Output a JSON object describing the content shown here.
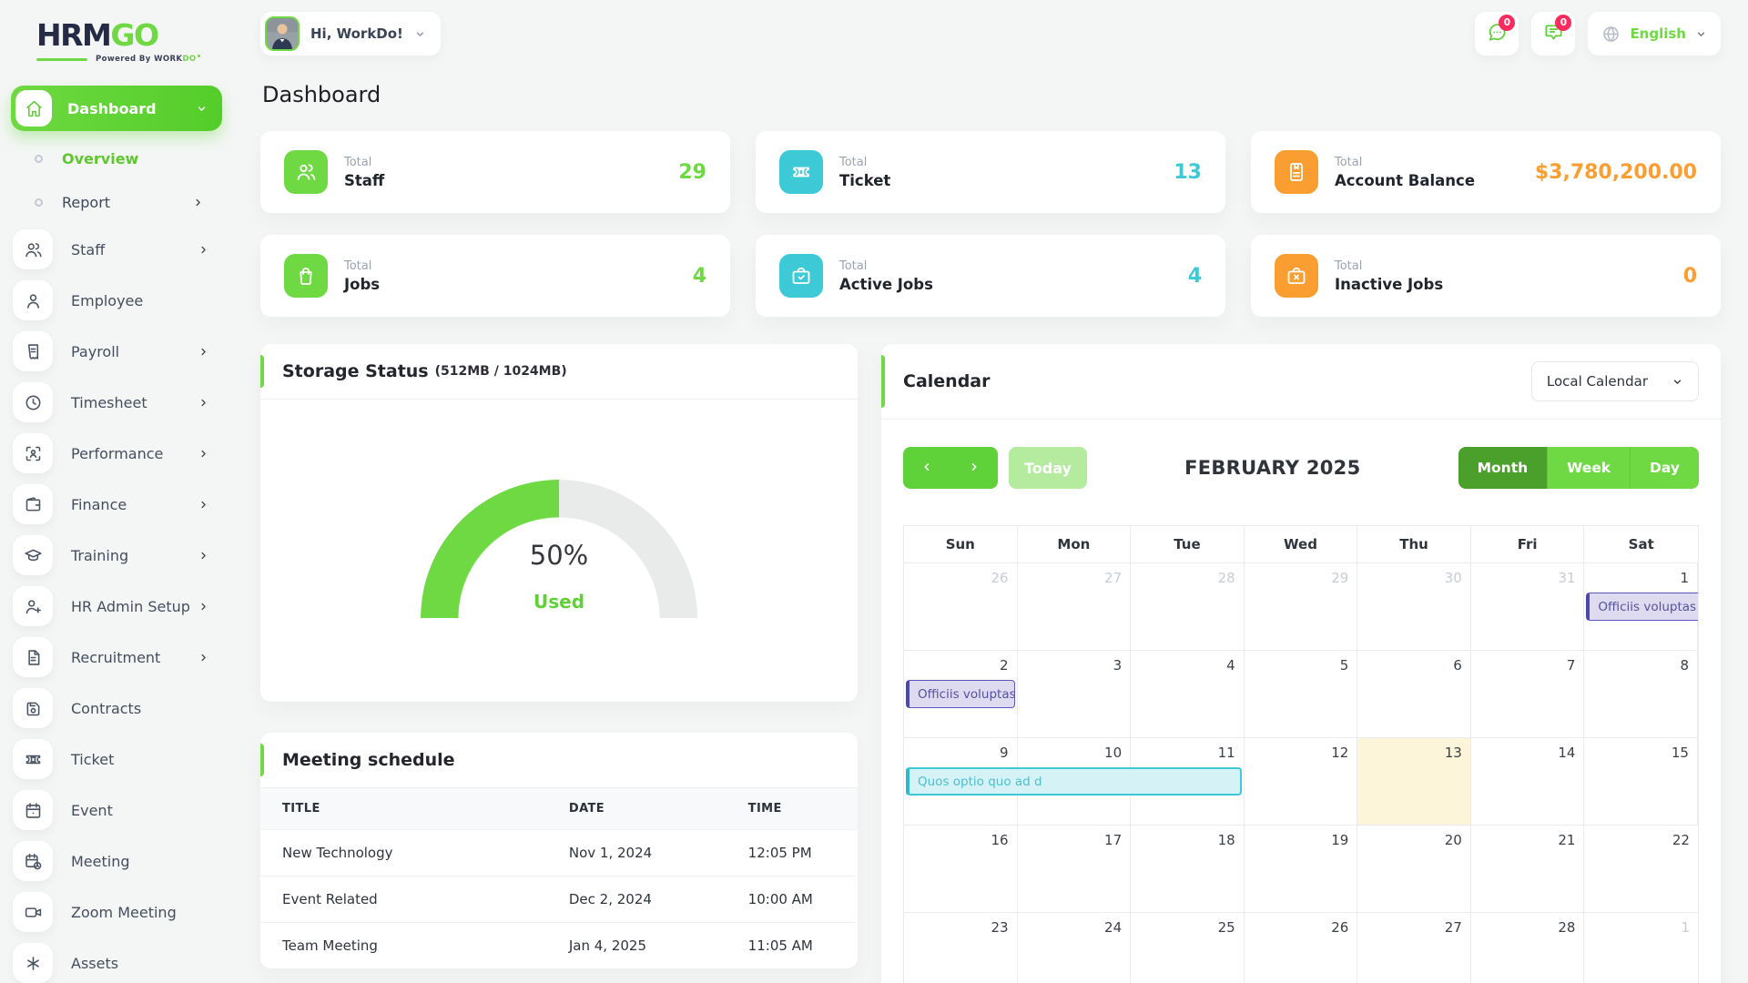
{
  "brand": {
    "name_primary": "HRM",
    "name_secondary": "GO",
    "powered_prefix": "Powered By",
    "powered_work": "WORK",
    "powered_do": "DO"
  },
  "header": {
    "greeting": "Hi, WorkDo!",
    "language": "English",
    "messages_badge": "0",
    "notifications_badge": "0"
  },
  "page": {
    "title": "Dashboard"
  },
  "sidebar": {
    "items": [
      {
        "label": "Dashboard",
        "icon": "home",
        "type": "active"
      },
      {
        "label": "Overview",
        "type": "sub",
        "active": true
      },
      {
        "label": "Report",
        "type": "sub",
        "chevron": true
      },
      {
        "label": "Staff",
        "icon": "users",
        "chevron": true
      },
      {
        "label": "Employee",
        "icon": "user"
      },
      {
        "label": "Payroll",
        "icon": "receipt",
        "chevron": true
      },
      {
        "label": "Timesheet",
        "icon": "clock",
        "chevron": true
      },
      {
        "label": "Performance",
        "icon": "scan-person",
        "chevron": true
      },
      {
        "label": "Finance",
        "icon": "wallet",
        "chevron": true
      },
      {
        "label": "Training",
        "icon": "graduation-cap",
        "chevron": true
      },
      {
        "label": "HR Admin Setup",
        "icon": "user-plus",
        "chevron": true
      },
      {
        "label": "Recruitment",
        "icon": "document",
        "chevron": true
      },
      {
        "label": "Contracts",
        "icon": "save"
      },
      {
        "label": "Ticket",
        "icon": "ticket"
      },
      {
        "label": "Event",
        "icon": "calendar"
      },
      {
        "label": "Meeting",
        "icon": "calendar-clock"
      },
      {
        "label": "Zoom Meeting",
        "icon": "video"
      },
      {
        "label": "Assets",
        "icon": "asterisk"
      }
    ]
  },
  "stat_cards": [
    {
      "prefix": "Total",
      "label": "Staff",
      "value": "29",
      "color": "#6fd943",
      "icon": "users"
    },
    {
      "prefix": "Total",
      "label": "Ticket",
      "value": "13",
      "color": "#3ec9d6",
      "icon": "ticket"
    },
    {
      "prefix": "Total",
      "label": "Account Balance",
      "value": "$3,780,200.00",
      "color": "#fb9e32",
      "icon": "invoice"
    },
    {
      "prefix": "Total",
      "label": "Jobs",
      "value": "4",
      "color": "#6fd943",
      "icon": "bag"
    },
    {
      "prefix": "Total",
      "label": "Active Jobs",
      "value": "4",
      "color": "#3ec9d6",
      "icon": "briefcase-check"
    },
    {
      "prefix": "Total",
      "label": "Inactive Jobs",
      "value": "0",
      "color": "#fb9e32",
      "icon": "briefcase-x"
    }
  ],
  "storage": {
    "title": "Storage Status",
    "subtitle": "(512MB / 1024MB)",
    "percent_text": "50%",
    "used_label": "Used",
    "percent_value": 50,
    "used_mb": 512,
    "total_mb": 1024,
    "fill_color": "#6fd943",
    "track_color": "#e9eaea"
  },
  "meetings": {
    "title": "Meeting schedule",
    "columns": [
      "TITLE",
      "DATE",
      "TIME"
    ],
    "rows": [
      [
        "New Technology",
        "Nov 1, 2024",
        "12:05 PM"
      ],
      [
        "Event Related",
        "Dec 2, 2024",
        "10:00 AM"
      ],
      [
        "Team Meeting",
        "Jan 4, 2025",
        "11:05 AM"
      ]
    ]
  },
  "calendar": {
    "title": "Calendar",
    "source_select": "Local Calendar",
    "today_label": "Today",
    "month_label": "FEBRUARY 2025",
    "views": [
      "Month",
      "Week",
      "Day"
    ],
    "active_view": "Month",
    "day_headers": [
      "Sun",
      "Mon",
      "Tue",
      "Wed",
      "Thu",
      "Fri",
      "Sat"
    ],
    "weeks": [
      [
        {
          "d": "26",
          "muted": true
        },
        {
          "d": "27",
          "muted": true
        },
        {
          "d": "28",
          "muted": true
        },
        {
          "d": "29",
          "muted": true
        },
        {
          "d": "30",
          "muted": true
        },
        {
          "d": "31",
          "muted": true
        },
        {
          "d": "1"
        }
      ],
      [
        {
          "d": "2"
        },
        {
          "d": "3"
        },
        {
          "d": "4"
        },
        {
          "d": "5"
        },
        {
          "d": "6"
        },
        {
          "d": "7"
        },
        {
          "d": "8"
        }
      ],
      [
        {
          "d": "9"
        },
        {
          "d": "10"
        },
        {
          "d": "11"
        },
        {
          "d": "12"
        },
        {
          "d": "13",
          "today": true
        },
        {
          "d": "14"
        },
        {
          "d": "15"
        }
      ],
      [
        {
          "d": "16"
        },
        {
          "d": "17"
        },
        {
          "d": "18"
        },
        {
          "d": "19"
        },
        {
          "d": "20"
        },
        {
          "d": "21"
        },
        {
          "d": "22"
        }
      ],
      [
        {
          "d": "23"
        },
        {
          "d": "24"
        },
        {
          "d": "25"
        },
        {
          "d": "26"
        },
        {
          "d": "27"
        },
        {
          "d": "28"
        },
        {
          "d": "1",
          "muted": true
        }
      ]
    ],
    "events": [
      {
        "label": "Officiis voluptas c",
        "week": 0,
        "col": 6,
        "span": 1,
        "color": "purple",
        "clip_right": true
      },
      {
        "label": "Officiis voluptas c",
        "week": 1,
        "col": 0,
        "span": 1,
        "color": "purple"
      },
      {
        "label": "Quos optio quo ad d",
        "week": 2,
        "col": 0,
        "span": 3,
        "color": "cyan"
      }
    ],
    "today_bg": "#fcf5da",
    "event_purple": {
      "bg": "#dedbf1",
      "border": "#5b55bb",
      "text": "#55519e"
    },
    "event_cyan": {
      "bg": "#d5f2f6",
      "border": "#3fc8d6",
      "text": "#4cc0cf"
    }
  },
  "colors": {
    "primary_green": "#6fd943",
    "dark_green": "#4ba02c",
    "light_green": "#b5eb9f",
    "cyan": "#3ec9d6",
    "orange": "#fb9e32",
    "badge_pink": "#fb2b5e"
  }
}
